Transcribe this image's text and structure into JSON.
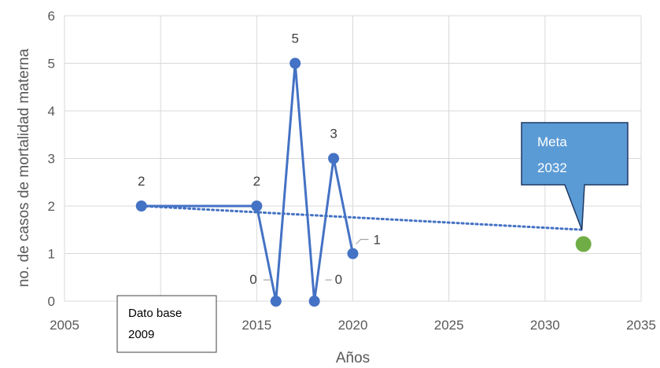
{
  "chart_data": {
    "type": "scatter",
    "xlabel": "Años",
    "ylabel": "no. de casos de mortalidad materna",
    "xlim": [
      2005,
      2035
    ],
    "ylim": [
      0,
      6
    ],
    "x_ticks": [
      "2005",
      "2010",
      "2015",
      "2020",
      "2025",
      "2030",
      "2035"
    ],
    "y_ticks": [
      "0",
      "1",
      "2",
      "3",
      "4",
      "5",
      "6"
    ],
    "grid": true,
    "legend": "none",
    "series": [
      {
        "style": "line-markers",
        "color": "#4472C4",
        "x": [
          2009,
          2015,
          2016,
          2017,
          2018,
          2019,
          2020
        ],
        "y": [
          2,
          2,
          0,
          5,
          0,
          3,
          1
        ],
        "labels": [
          "2",
          "2",
          "0",
          "5",
          "0",
          "3",
          "1"
        ]
      },
      {
        "style": "dotted-trend",
        "color": "#4472C4",
        "x": [
          2009,
          2032
        ],
        "y": [
          2,
          1.5
        ]
      },
      {
        "style": "marker",
        "color": "#70AD47",
        "x": [
          2032
        ],
        "y": [
          1.2
        ]
      }
    ],
    "annotations": {
      "meta_line1": "Meta",
      "meta_line2": "2032",
      "base_line1": "Dato base",
      "base_line2": "2009"
    }
  }
}
